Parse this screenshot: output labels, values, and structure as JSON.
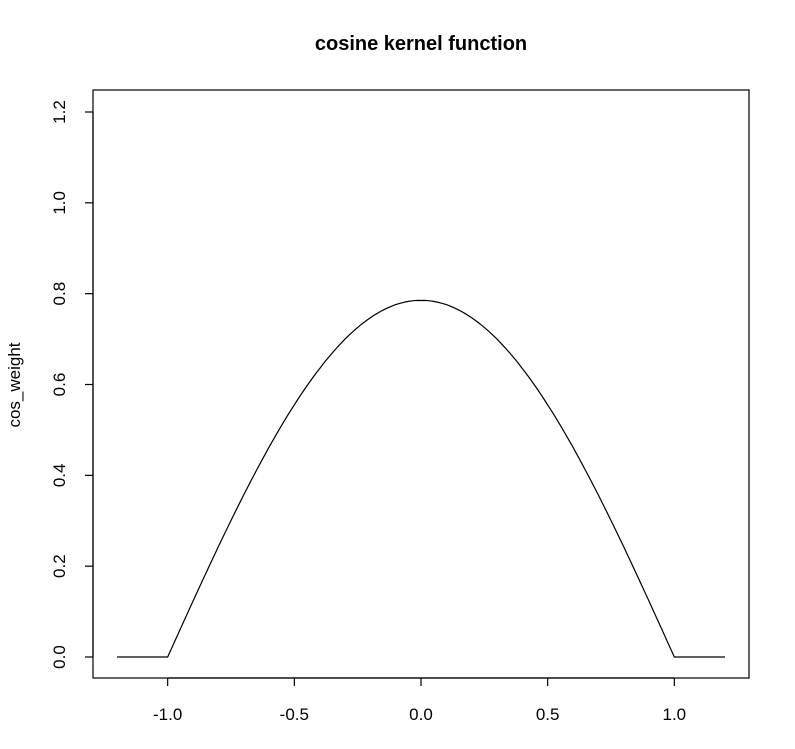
{
  "chart_data": {
    "type": "line",
    "title": "cosine kernel function",
    "xlabel": "",
    "ylabel": "cos_weight",
    "xlim": [
      -1.2,
      1.2
    ],
    "ylim": [
      0,
      1.2
    ],
    "xticks": [
      "-1.0",
      "-0.5",
      "0.0",
      "0.5",
      "1.0"
    ],
    "yticks": [
      "0.0",
      "0.2",
      "0.4",
      "0.6",
      "0.8",
      "1.0",
      "1.2"
    ],
    "grid": false,
    "legend": "none",
    "series": [
      {
        "x": [
          -1.2,
          -1.1,
          -1.0,
          -0.9,
          -0.8,
          -0.7,
          -0.6,
          -0.5,
          -0.4,
          -0.3,
          -0.2,
          -0.1,
          0.0,
          0.1,
          0.2,
          0.3,
          0.4,
          0.5,
          0.6,
          0.7,
          0.8,
          0.9,
          1.0,
          1.1,
          1.2
        ],
        "y": [
          0,
          0,
          0,
          0.123,
          0.243,
          0.357,
          0.462,
          0.555,
          0.635,
          0.7,
          0.747,
          0.776,
          0.785,
          0.776,
          0.747,
          0.7,
          0.635,
          0.555,
          0.462,
          0.357,
          0.243,
          0.123,
          0,
          0,
          0
        ]
      }
    ]
  }
}
